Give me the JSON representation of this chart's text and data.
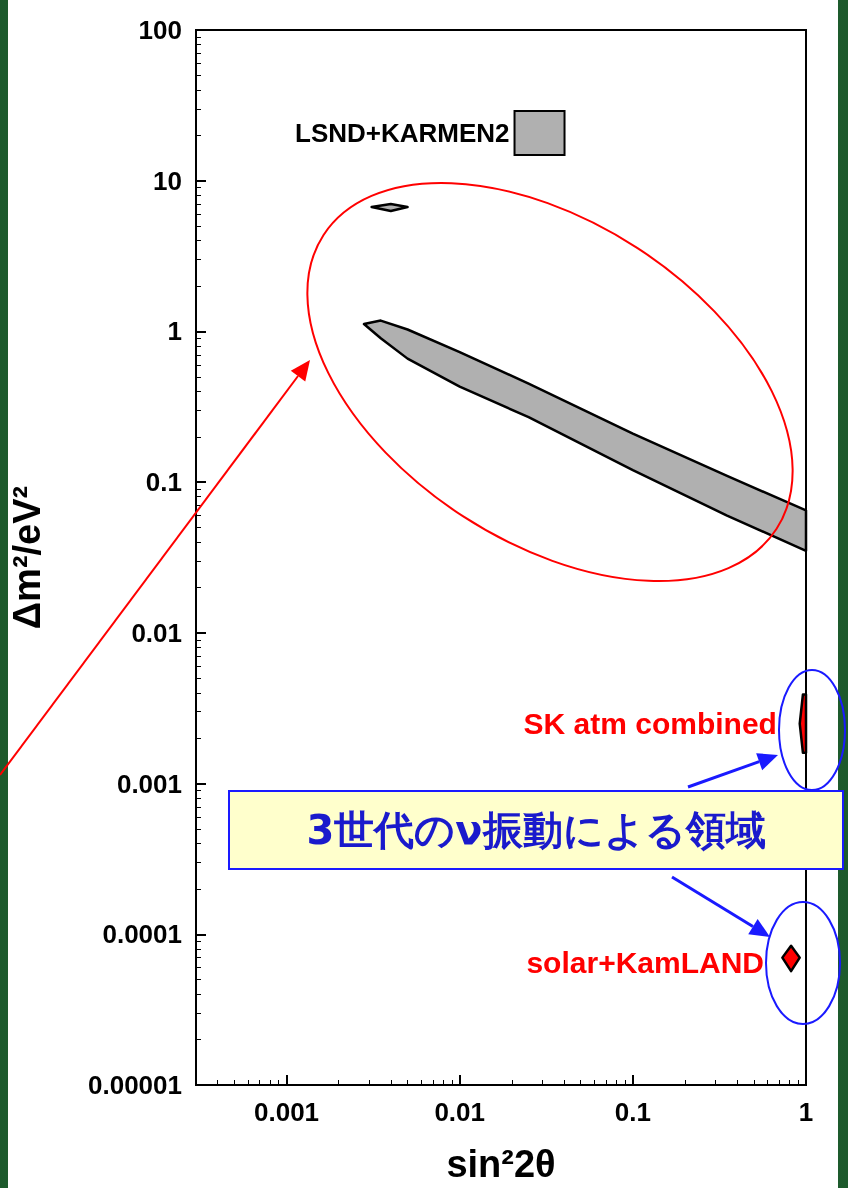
{
  "chart_data": {
    "type": "area",
    "xlabel": "sin²2θ",
    "ylabel": "Δm²/eV²",
    "log": "xy",
    "xlim": [
      0.0003,
      1
    ],
    "ylim": [
      1e-05,
      100
    ],
    "xticks": [
      0.001,
      0.01,
      0.1,
      1
    ],
    "yticks": [
      {
        "value": 1e-05,
        "label": "0.00001"
      },
      0.0001,
      0.001,
      0.01,
      0.1,
      1,
      10,
      100
    ],
    "grid": false,
    "legend": "top",
    "series": [
      {
        "name": "LSND+KARMEN2",
        "color": "#b0b0b0",
        "x": [
          0.0028,
          0.0035,
          0.005,
          0.01,
          0.025,
          0.1,
          0.35,
          1,
          1,
          0.35,
          0.1,
          0.025,
          0.01,
          0.005,
          0.0035
        ],
        "values": [
          1.12,
          1.18,
          1.03,
          0.73,
          0.45,
          0.21,
          0.11,
          0.065,
          0.035,
          0.06,
          0.12,
          0.27,
          0.43,
          0.66,
          0.9
        ]
      },
      {
        "color": "#b0b0b0",
        "x": [
          0.0031,
          0.004,
          0.005,
          0.004
        ],
        "values": [
          6.7,
          7.0,
          6.7,
          6.3
        ]
      },
      {
        "color": "#ff0000",
        "x": [
          0.92,
          0.96,
          1,
          1,
          0.96
        ],
        "values": [
          0.0025,
          0.0039,
          0.0039,
          0.0016,
          0.0016
        ]
      },
      {
        "color": "#ff0000",
        "x": [
          0.73,
          0.82,
          0.92,
          0.82
        ],
        "values": [
          7e-05,
          8.4e-05,
          7e-05,
          5.7e-05
        ]
      }
    ],
    "annotations": [
      {
        "text": "SK atm combined",
        "x": 0.96,
        "y": 0.0025
      },
      "solar+KamLAND",
      "3世代のν振動による領域"
    ]
  }
}
